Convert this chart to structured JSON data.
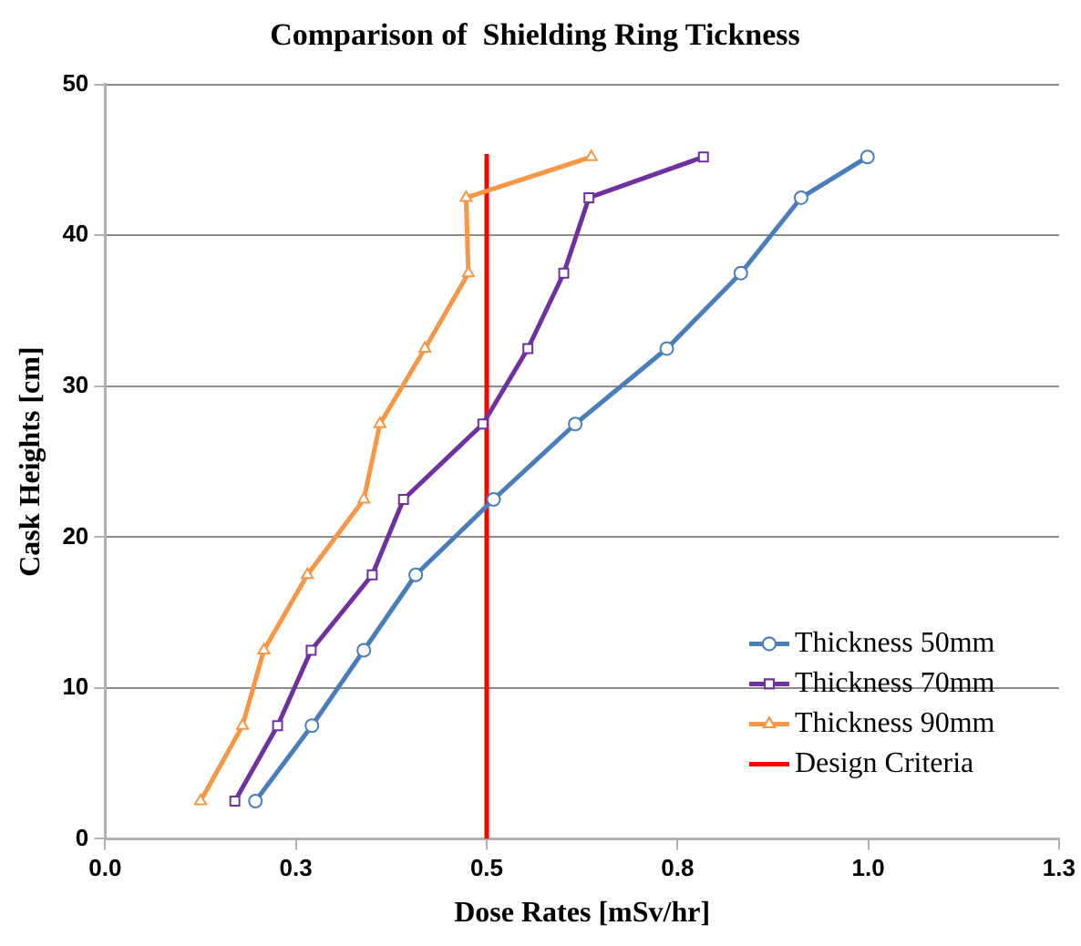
{
  "chart_data": {
    "type": "line",
    "title": "Comparison of  Shielding Ring Tickness",
    "xlabel": "Dose Rates [mSv/hr]",
    "ylabel": "Cask Heights [cm]",
    "xlim": [
      0,
      1.25
    ],
    "xticks": [
      {
        "value": 0,
        "label": "0.0"
      },
      {
        "value": 0.25,
        "label": "0.3"
      },
      {
        "value": 0.5,
        "label": "0.5"
      },
      {
        "value": 0.75,
        "label": "0.8"
      },
      {
        "value": 1,
        "label": "1.0"
      },
      {
        "value": 1.25,
        "label": "1.3"
      }
    ],
    "ylim": [
      0,
      50
    ],
    "yticks": [
      0,
      10,
      20,
      30,
      40,
      50
    ],
    "grid": "y",
    "legend": "bottom right",
    "series": [
      {
        "name": "Thickness 50mm",
        "color": "#4a7ebb",
        "marker": "circle",
        "x": [
          0.197,
          0.271,
          0.339,
          0.407,
          0.509,
          0.616,
          0.736,
          0.833,
          0.912,
          0.999
        ],
        "values": [
          2.5,
          7.5,
          12.5,
          17.5,
          22.5,
          27.5,
          32.5,
          37.5,
          42.5,
          45.2
        ]
      },
      {
        "name": "Thickness 70mm",
        "color": "#7030a0",
        "marker": "square",
        "x": [
          0.17,
          0.226,
          0.27,
          0.35,
          0.391,
          0.495,
          0.554,
          0.601,
          0.634,
          0.784
        ],
        "values": [
          2.5,
          7.5,
          12.5,
          17.5,
          22.5,
          27.5,
          32.5,
          37.5,
          42.5,
          45.2
        ]
      },
      {
        "name": "Thickness 90mm",
        "color": "#f79646",
        "marker": "triangle",
        "x": [
          0.125,
          0.18,
          0.208,
          0.265,
          0.339,
          0.36,
          0.419,
          0.476,
          0.473,
          0.637
        ],
        "values": [
          2.5,
          7.5,
          12.5,
          17.5,
          22.5,
          27.5,
          32.5,
          37.5,
          42.5,
          45.2
        ]
      },
      {
        "name": "Design Criteria",
        "color": "#ff0000",
        "marker": "none",
        "x": [
          0.5,
          0.5
        ],
        "values": [
          0,
          45.4
        ]
      }
    ]
  }
}
